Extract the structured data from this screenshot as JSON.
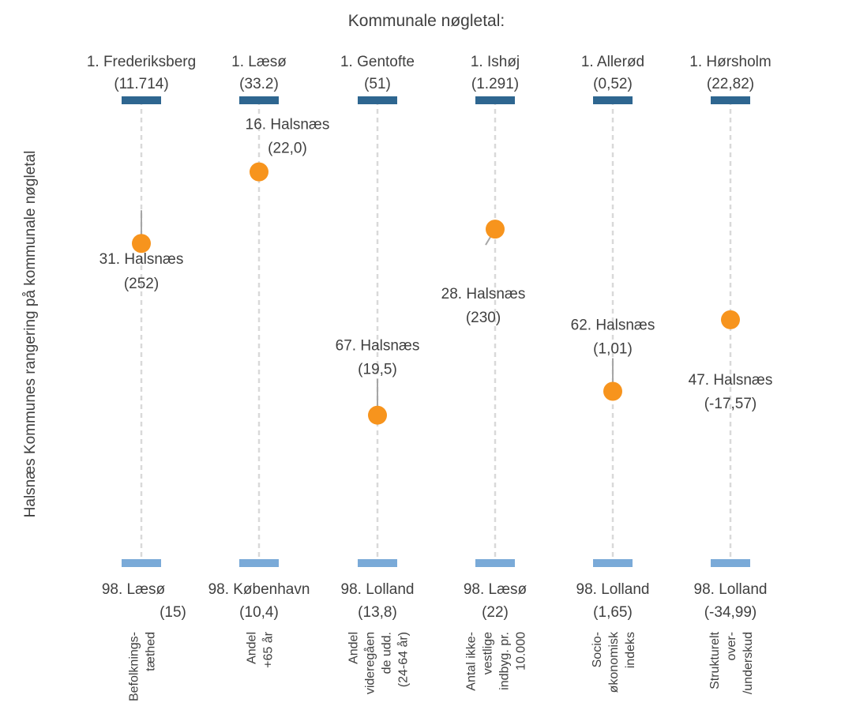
{
  "chart_data": {
    "type": "scatter",
    "title": "Kommunale nøgletal:",
    "ylabel": "Halsnæs Kommunes rangering på kommunale nøgletal",
    "xlabel": "",
    "rank_range": [
      1,
      98
    ],
    "grid": false,
    "legend": "none",
    "colors": {
      "top": "#2e6690",
      "bottom": "#7aaad8",
      "point": "#f7941d",
      "guide": "#d9d9d9",
      "leader": "#a6a6a6"
    },
    "categories": [
      [
        "Befolknings-",
        "tæthed"
      ],
      [
        "Andel",
        "+65 år"
      ],
      [
        "Andel",
        "videregåen",
        "de udd.",
        "(24-64 år)"
      ],
      [
        "Antal ikke-",
        "vestlige",
        "indbyg. pr.",
        "10.000"
      ],
      [
        "Socio-",
        "økonomisk",
        "indeks"
      ],
      [
        "Strukturelt",
        "over-",
        "/underskud"
      ]
    ],
    "top": [
      {
        "label": "1. Frederiksberg",
        "value": "(11.714)"
      },
      {
        "label": "1. Læsø",
        "value": "(33.2)"
      },
      {
        "label": "1. Gentofte",
        "value": "(51)"
      },
      {
        "label": "1. Ishøj",
        "value": "(1.291)"
      },
      {
        "label": "1. Allerød",
        "value": "(0,52)"
      },
      {
        "label": "1. Hørsholm",
        "value": "(22,82)"
      }
    ],
    "halsnaes": [
      {
        "rank": 31,
        "label": "31. Halsnæs",
        "value": "(252)"
      },
      {
        "rank": 16,
        "label": "16. Halsnæs",
        "value": "(22,0)"
      },
      {
        "rank": 67,
        "label": "67. Halsnæs",
        "value": "(19,5)"
      },
      {
        "rank": 28,
        "label": "28. Halsnæs",
        "value": "(230)"
      },
      {
        "rank": 62,
        "label": "62. Halsnæs",
        "value": "(1,01)"
      },
      {
        "rank": 47,
        "label": "47. Halsnæs",
        "value": "(-17,57)"
      }
    ],
    "bottom": [
      {
        "label": "98. Læsø",
        "value": "(15)"
      },
      {
        "label": "98. København",
        "value": "(10,4)"
      },
      {
        "label": "98. Lolland",
        "value": "(13,8)"
      },
      {
        "label": "98. Læsø",
        "value": "(22)"
      },
      {
        "label": "98. Lolland",
        "value": "(1,65)"
      },
      {
        "label": "98. Lolland",
        "value": "(-34,99)"
      }
    ]
  }
}
